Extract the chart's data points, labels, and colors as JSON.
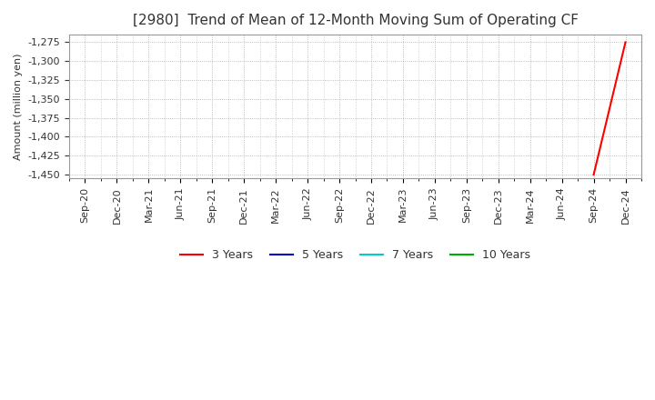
{
  "title": "[2980]  Trend of Mean of 12-Month Moving Sum of Operating CF",
  "ylabel": "Amount (million yen)",
  "ylim": [
    -1455,
    -1265
  ],
  "yticks": [
    -1450,
    -1425,
    -1400,
    -1375,
    -1350,
    -1325,
    -1300,
    -1275
  ],
  "background_color": "#ffffff",
  "plot_bg_color": "#ffffff",
  "grid_color": "#aaaaaa",
  "line_colors": {
    "3 Years": "#ff0000",
    "5 Years": "#0000cc",
    "7 Years": "#00cccc",
    "10 Years": "#00aa00"
  },
  "series": {
    "3 Years": {
      "x": [
        "Sep-24",
        "Dec-24"
      ],
      "y": [
        -1450,
        -1275
      ]
    },
    "5 Years": {
      "x": [],
      "y": []
    },
    "7 Years": {
      "x": [],
      "y": []
    },
    "10 Years": {
      "x": [],
      "y": []
    }
  },
  "x_tick_labels": [
    "Sep-20",
    "Dec-20",
    "Mar-21",
    "Jun-21",
    "Sep-21",
    "Dec-21",
    "Mar-22",
    "Jun-22",
    "Sep-22",
    "Dec-22",
    "Mar-23",
    "Jun-23",
    "Sep-23",
    "Dec-23",
    "Mar-24",
    "Jun-24",
    "Sep-24",
    "Dec-24"
  ],
  "title_fontsize": 11,
  "axis_fontsize": 8,
  "tick_fontsize": 8,
  "legend_fontsize": 9
}
